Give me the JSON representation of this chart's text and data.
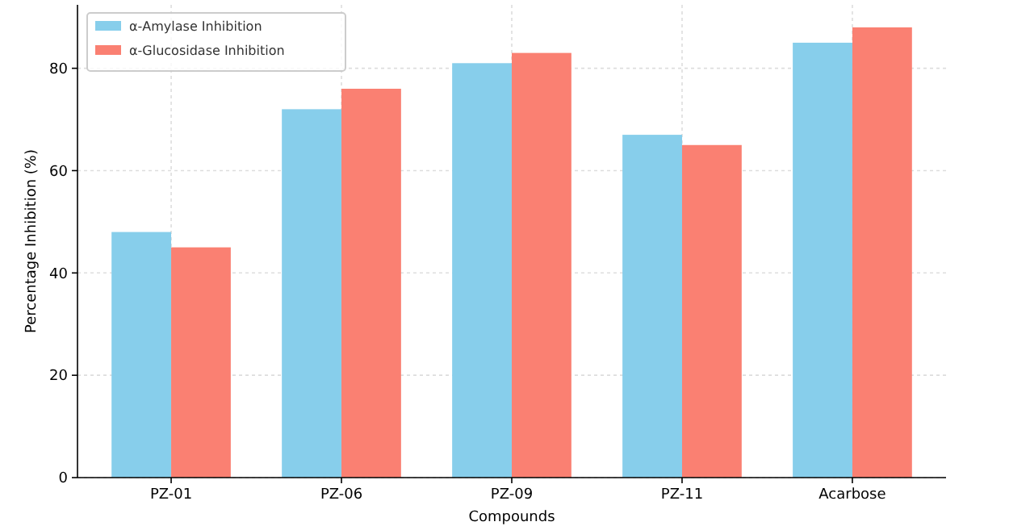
{
  "chart_data": {
    "type": "bar",
    "xlabel": "Compounds",
    "ylabel": "Percentage Inhibition (%)",
    "categories": [
      "PZ-01",
      "PZ-06",
      "PZ-09",
      "PZ-11",
      "Acarbose"
    ],
    "series": [
      {
        "name": "α-Amylase Inhibition",
        "color": "#87ceeb",
        "values": [
          48,
          72,
          81,
          67,
          85
        ]
      },
      {
        "name": "α-Glucosidase Inhibition",
        "color": "#fa8072",
        "values": [
          45,
          76,
          83,
          65,
          88
        ]
      }
    ],
    "ylim": [
      0,
      92.4
    ],
    "yticks": [
      0,
      20,
      40,
      60,
      80
    ],
    "grid": true,
    "legend": "top left"
  }
}
